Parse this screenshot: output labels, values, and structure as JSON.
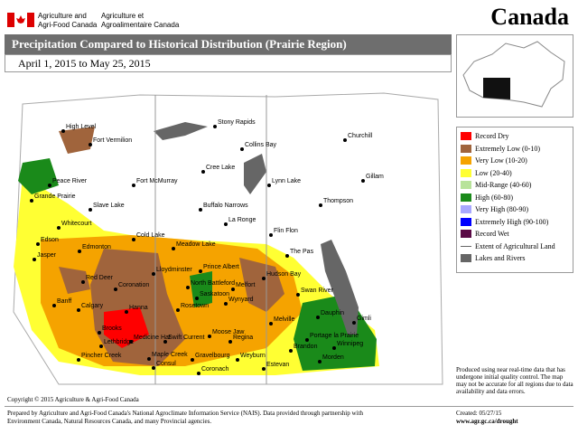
{
  "header": {
    "org_en": [
      "Agriculture and",
      "Agri-Food Canada"
    ],
    "org_fr": [
      "Agriculture et",
      "Agroalimentaire Canada"
    ],
    "wordmark": "Canada"
  },
  "title": "Precipitation Compared to Historical Distribution (Prairie Region)",
  "date_range": "April 1, 2015 to May 25, 2015",
  "legend": [
    {
      "label": "Record Dry",
      "color": "#ff0000"
    },
    {
      "label": "Extremely Low (0-10)",
      "color": "#a0643c"
    },
    {
      "label": "Very Low (10-20)",
      "color": "#f5a300"
    },
    {
      "label": "Low (20-40)",
      "color": "#ffff33"
    },
    {
      "label": "Mid-Range (40-60)",
      "color": "#b8e39a"
    },
    {
      "label": "High (60-80)",
      "color": "#1a8a1a"
    },
    {
      "label": "Very High (80-90)",
      "color": "#a8a8ff"
    },
    {
      "label": "Extremely High (90-100)",
      "color": "#0000ff"
    },
    {
      "label": "Record Wet",
      "color": "#5a0a46"
    },
    {
      "label": "Extent of Agricultural Land",
      "line": true
    },
    {
      "label": "Lakes and Rivers",
      "color": "#666666"
    }
  ],
  "places": [
    "High Level",
    "Fort Vermilion",
    "Stony Rapids",
    "Churchill",
    "Collins Bay",
    "Peace River",
    "Fort McMurray",
    "Cree Lake",
    "Lynn Lake",
    "Gillam",
    "Grande Prairie",
    "Slave Lake",
    "Buffalo Narrows",
    "Thompson",
    "Whitecourt",
    "La Ronge",
    "Flin Flon",
    "Cold Lake",
    "Edson",
    "Edmonton",
    "Meadow Lake",
    "The Pas",
    "Jasper",
    "Lloydminster",
    "Prince Albert",
    "Hudson Bay",
    "Red Deer",
    "North Battleford",
    "Melfort",
    "Coronation",
    "Saskatoon",
    "Swan River",
    "Wynyard",
    "Banff",
    "Calgary",
    "Hanna",
    "Rosetown",
    "Dauphin",
    "Gimli",
    "Melville",
    "Brooks",
    "Moose Jaw",
    "Regina",
    "Portage la Prairie",
    "Swift Current",
    "Medicine Hat",
    "Lethbridge",
    "Brandon",
    "Maple Creek",
    "Gravelbourg",
    "Weyburn",
    "Winnipeg",
    "Pincher Creek",
    "Consul",
    "Morden",
    "Estevan",
    "Coronach"
  ],
  "note": "Produced using near real-time data that has undergone initial quality control. The map may not be accurate for all regions due to data availability and data errors.",
  "footer": {
    "copyright": "Copyright © 2015 Agriculture & Agri-Food Canada",
    "prepared": "Prepared by Agriculture and Agri-Food Canada's National Agroclimate Information Service (NAIS). Data provided through partnership with Environment Canada, Natural Resources Canada, and many Provincial agencies.",
    "created": "Created: 05/27/15",
    "url": "www.agr.gc.ca/drought"
  }
}
